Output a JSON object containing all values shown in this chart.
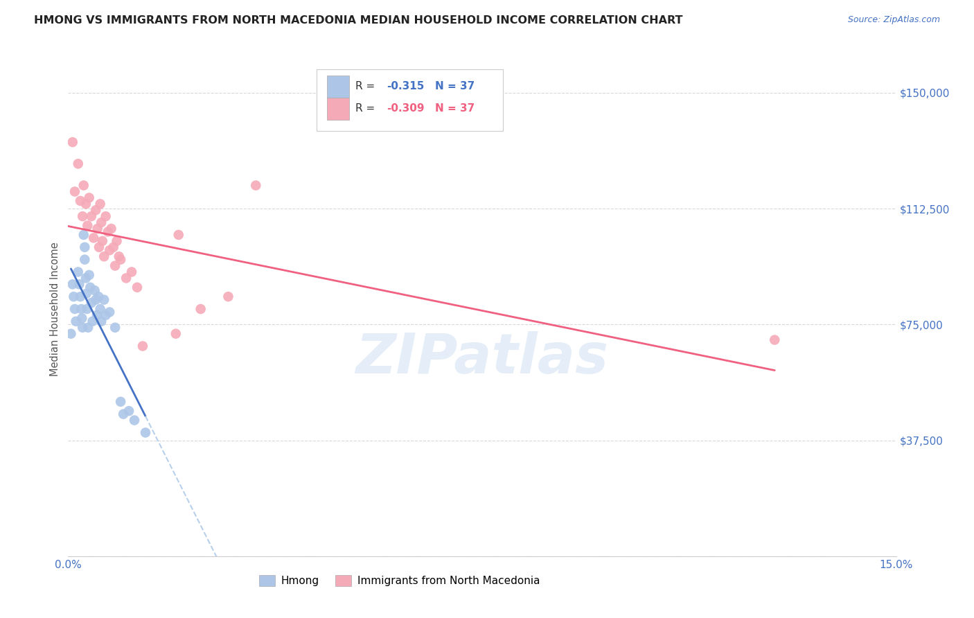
{
  "title": "HMONG VS IMMIGRANTS FROM NORTH MACEDONIA MEDIAN HOUSEHOLD INCOME CORRELATION CHART",
  "source": "Source: ZipAtlas.com",
  "ylabel": "Median Household Income",
  "xlim": [
    0.0,
    0.15
  ],
  "ylim": [
    0,
    160000
  ],
  "yticks": [
    0,
    37500,
    75000,
    112500,
    150000
  ],
  "ytick_labels": [
    "",
    "$37,500",
    "$75,000",
    "$112,500",
    "$150,000"
  ],
  "xticks": [
    0.0,
    0.05,
    0.1,
    0.15
  ],
  "xtick_labels": [
    "0.0%",
    "",
    "",
    "15.0%"
  ],
  "background_color": "#ffffff",
  "grid_color": "#d8d8d8",
  "watermark_text": "ZIPatlas",
  "legend_r_blue": "-0.315",
  "legend_r_pink": "-0.309",
  "legend_n": "37",
  "blue_color": "#adc6e8",
  "pink_color": "#f5aab8",
  "blue_line_color": "#4472c4",
  "pink_line_color": "#f06080",
  "blue_dashed_color": "#b8d0ea",
  "axis_color": "#4472c4",
  "hmong_scatter_x": [
    0.0008,
    0.001,
    0.0012,
    0.0014,
    0.0018,
    0.002,
    0.0022,
    0.0024,
    0.0025,
    0.0026,
    0.0028,
    0.003,
    0.003,
    0.0032,
    0.0033,
    0.0034,
    0.0036,
    0.0038,
    0.004,
    0.0042,
    0.0044,
    0.0048,
    0.005,
    0.0052,
    0.0055,
    0.0058,
    0.006,
    0.0065,
    0.0068,
    0.0075,
    0.0085,
    0.0095,
    0.01,
    0.014,
    0.0005,
    0.011,
    0.012
  ],
  "hmong_scatter_y": [
    88000,
    84000,
    80000,
    76000,
    92000,
    88000,
    84000,
    80000,
    77000,
    74000,
    104000,
    100000,
    96000,
    90000,
    85000,
    80000,
    74000,
    91000,
    87000,
    82000,
    76000,
    86000,
    83000,
    78000,
    84000,
    80000,
    76000,
    83000,
    78000,
    79000,
    74000,
    50000,
    46000,
    40000,
    72000,
    47000,
    44000
  ],
  "macedonia_scatter_x": [
    0.0008,
    0.0012,
    0.0018,
    0.0022,
    0.0026,
    0.0028,
    0.0032,
    0.0035,
    0.0038,
    0.0042,
    0.0046,
    0.005,
    0.0053,
    0.0056,
    0.0058,
    0.006,
    0.0062,
    0.0065,
    0.0068,
    0.0072,
    0.0075,
    0.0078,
    0.0082,
    0.0085,
    0.0088,
    0.0092,
    0.0095,
    0.0105,
    0.0115,
    0.0125,
    0.0135,
    0.0195,
    0.024,
    0.029,
    0.034,
    0.128,
    0.02
  ],
  "macedonia_scatter_y": [
    134000,
    118000,
    127000,
    115000,
    110000,
    120000,
    114000,
    107000,
    116000,
    110000,
    103000,
    112000,
    106000,
    100000,
    114000,
    108000,
    102000,
    97000,
    110000,
    105000,
    99000,
    106000,
    100000,
    94000,
    102000,
    97000,
    96000,
    90000,
    92000,
    87000,
    68000,
    72000,
    80000,
    84000,
    120000,
    70000,
    104000
  ]
}
